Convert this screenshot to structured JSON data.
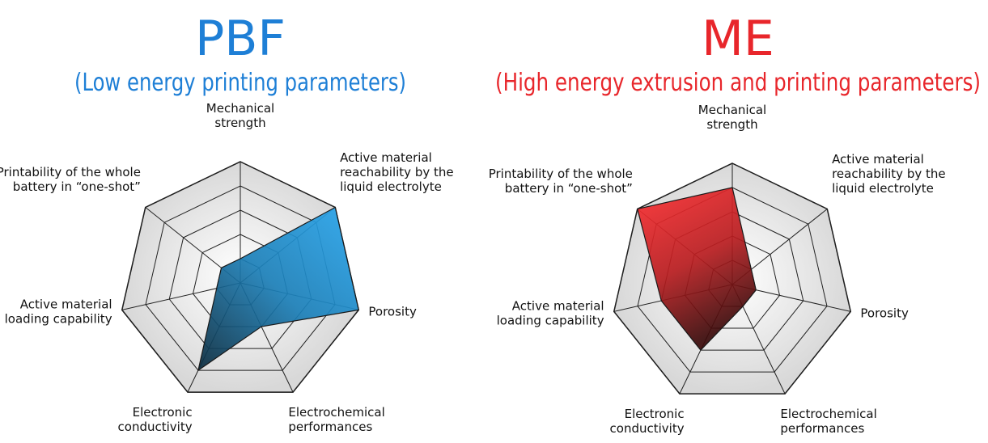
{
  "chart_data": [
    {
      "type": "radar",
      "title": "PBF",
      "subtitle": "(Low energy printing parameters)",
      "title_color": "#1e7fd6",
      "color": "#2aa8f0",
      "categories": [
        "Mechanical\nstrength",
        "Active material\nreachability by the\nliquid electrolyte",
        "Porosity",
        "Electrochemical\nperformances",
        "Electronic\nconductivity",
        "Active material\nloading capability",
        "Printability of the whole\nbattery in “one-shot”"
      ],
      "values": [
        1,
        5,
        5,
        2,
        4,
        1,
        1
      ],
      "rlim": [
        0,
        5
      ],
      "rticks": [
        1,
        2,
        3,
        4,
        5
      ],
      "grid": true
    },
    {
      "type": "radar",
      "title": "ME",
      "subtitle": "(High energy extrusion and printing parameters)",
      "title_color": "#e8262b",
      "color": "#e8252a",
      "categories": [
        "Mechanical\nstrength",
        "Active material\nreachability by the\nliquid electrolyte",
        "Porosity",
        "Electrochemical\nperformances",
        "Electronic\nconductivity",
        "Active material\nloading capability",
        "Printability of the whole\nbattery in “one-shot”"
      ],
      "values": [
        4,
        1,
        1,
        1,
        3,
        3,
        5
      ],
      "rlim": [
        0,
        5
      ],
      "rticks": [
        1,
        2,
        3,
        4,
        5
      ],
      "grid": true
    }
  ]
}
